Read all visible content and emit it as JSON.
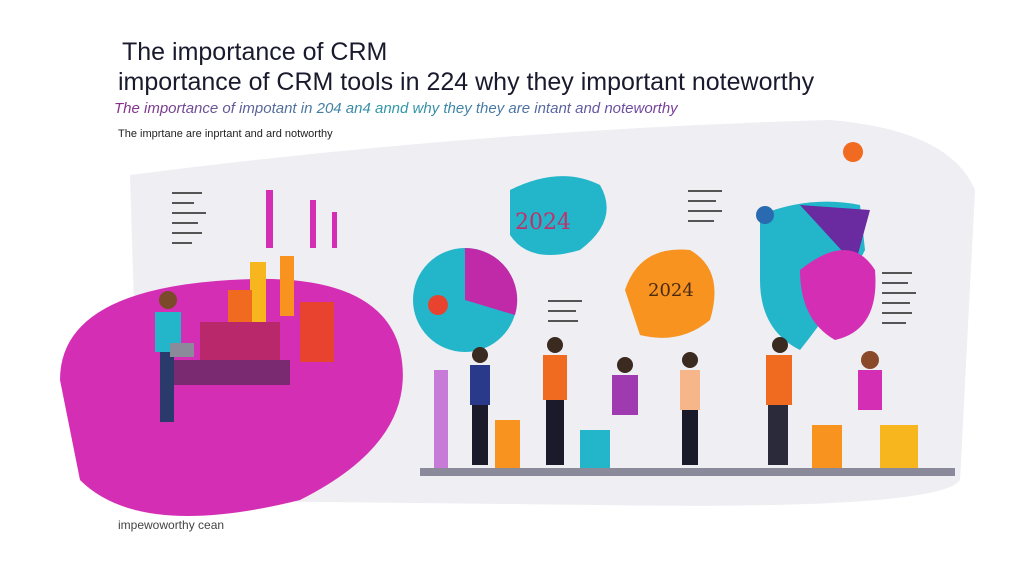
{
  "title_line1": "The importance of CRM",
  "title_line2": "importance of CRM   tools  in 224 why they important noteworthy",
  "subtitle": "The importance of impotant in 204 an4 annd why they they are intant and noteworthy",
  "caption": "The imprtane are inprtant and ard notworthy",
  "footer": "impewoworthy cean",
  "badge_year": "2024",
  "badge_year_2": "2024",
  "colors": {
    "magenta": "#d42fb4",
    "teal": "#23b5c9",
    "orange": "#f7931e",
    "purple": "#6a2aa0",
    "background_panel": "#eeeef2"
  }
}
